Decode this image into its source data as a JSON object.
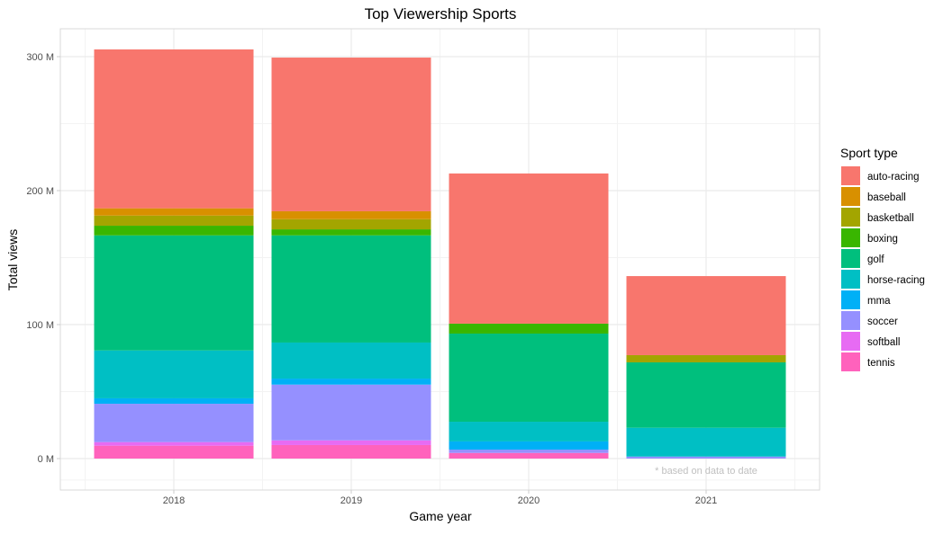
{
  "chart_data": {
    "type": "bar",
    "stacked": true,
    "title": "Top Viewership Sports",
    "xlabel": "Game year",
    "ylabel": "Total views",
    "categories": [
      "2018",
      "2019",
      "2020",
      "2021"
    ],
    "ylim": [
      0,
      320
    ],
    "yticks": [
      0,
      100,
      200,
      300
    ],
    "ytick_labels": [
      "0 M",
      "100 M",
      "200 M",
      "300 M"
    ],
    "grid": true,
    "legend": {
      "title": "Sport type",
      "position": "right"
    },
    "annotation": "* based on data to date",
    "series": [
      {
        "name": "auto-racing",
        "color": "#F8766D",
        "values": [
          118.6,
          114.7,
          112.1,
          59.0
        ]
      },
      {
        "name": "baseball",
        "color": "#D89000",
        "values": [
          5.4,
          5.9,
          0,
          0
        ]
      },
      {
        "name": "basketball",
        "color": "#A3A500",
        "values": [
          7.6,
          7.6,
          0,
          5.4
        ]
      },
      {
        "name": "boxing",
        "color": "#39B600",
        "values": [
          7.2,
          4.5,
          7.4,
          0
        ]
      },
      {
        "name": "golf",
        "color": "#00BF7D",
        "values": [
          85.9,
          80.0,
          65.8,
          48.8
        ]
      },
      {
        "name": "horse-racing",
        "color": "#00BFC4",
        "values": [
          35.7,
          26.9,
          14.7,
          21.5
        ]
      },
      {
        "name": "mma",
        "color": "#00B0F6",
        "values": [
          4.1,
          4.5,
          6.1,
          0
        ]
      },
      {
        "name": "soccer",
        "color": "#9590FF",
        "values": [
          28.6,
          41.6,
          2.5,
          1.5
        ]
      },
      {
        "name": "softball",
        "color": "#E76BF3",
        "values": [
          2.7,
          3.5,
          0,
          0
        ]
      },
      {
        "name": "tennis",
        "color": "#FF62BC",
        "values": [
          9.6,
          10.1,
          4.2,
          0
        ]
      }
    ]
  }
}
